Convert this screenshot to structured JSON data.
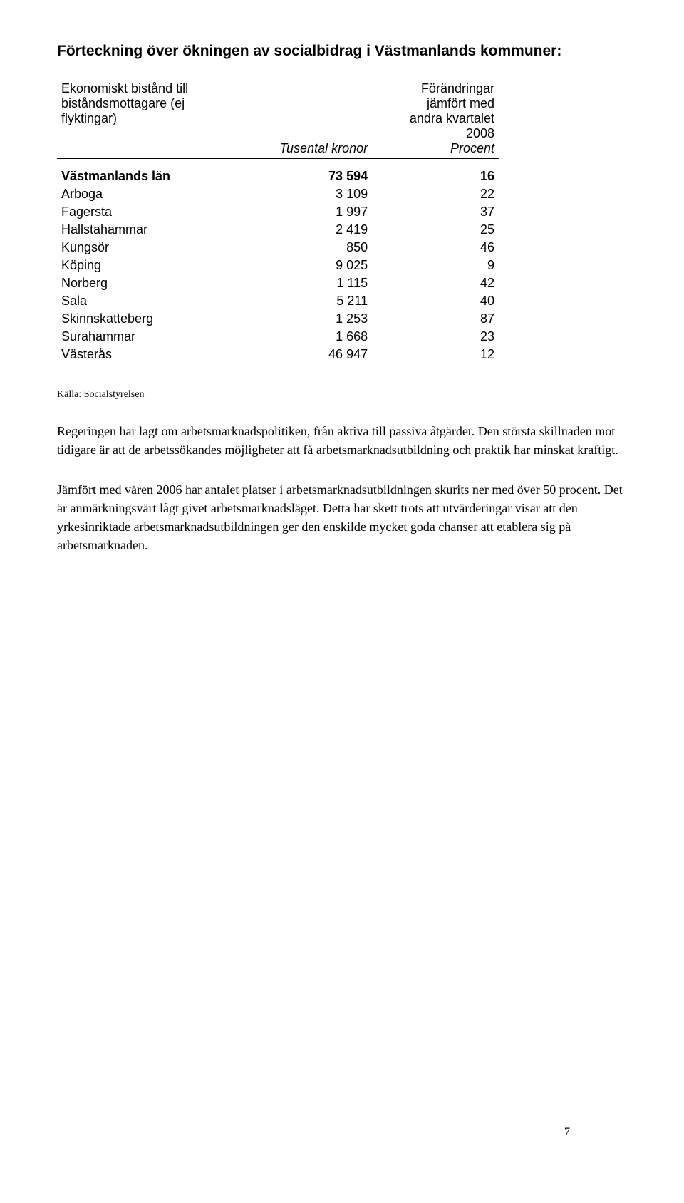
{
  "title": "Förteckning över ökningen av socialbidrag i Västmanlands kommuner:",
  "table": {
    "header_left_line1": "Ekonomiskt bistånd till",
    "header_left_line2": "biståndsmottagare (ej",
    "header_left_line3": "flyktingar)",
    "header_mid": "Tusental kronor",
    "header_right_line1": "Förändringar",
    "header_right_line2": "jämfört med",
    "header_right_line3": "andra kvartalet",
    "header_right_line4": "2008",
    "header_right_sub": "Procent",
    "rows": [
      {
        "name": "Västmanlands län",
        "v1": "73 594",
        "v2": "16",
        "bold": true
      },
      {
        "name": "Arboga",
        "v1": "3 109",
        "v2": "22",
        "bold": false
      },
      {
        "name": "Fagersta",
        "v1": "1 997",
        "v2": "37",
        "bold": false
      },
      {
        "name": "Hallstahammar",
        "v1": "2 419",
        "v2": "25",
        "bold": false
      },
      {
        "name": "Kungsör",
        "v1": "850",
        "v2": "46",
        "bold": false
      },
      {
        "name": "Köping",
        "v1": "9 025",
        "v2": "9",
        "bold": false
      },
      {
        "name": "Norberg",
        "v1": "1 115",
        "v2": "42",
        "bold": false
      },
      {
        "name": "Sala",
        "v1": "5 211",
        "v2": "40",
        "bold": false
      },
      {
        "name": "Skinnskatteberg",
        "v1": "1 253",
        "v2": "87",
        "bold": false
      },
      {
        "name": "Surahammar",
        "v1": "1 668",
        "v2": "23",
        "bold": false
      },
      {
        "name": "Västerås",
        "v1": "46 947",
        "v2": "12",
        "bold": false
      }
    ]
  },
  "source": "Källa: Socialstyrelsen",
  "para1": "Regeringen har lagt om arbetsmarknadspolitiken, från aktiva till passiva åtgärder. Den största skillnaden mot tidigare är att de arbetssökandes möjligheter att få arbetsmarknadsutbildning och praktik har minskat kraftigt.",
  "para2": "Jämfört med våren 2006 har antalet platser i arbetsmarknadsutbildningen skurits ner med över 50 procent. Det är anmärkningsvärt lågt givet arbetsmarknadsläget. Detta har skett trots att utvärderingar visar att den yrkesinriktade arbetsmarknadsutbildningen ger den enskilde mycket goda chanser att etablera sig på arbetsmarknaden.",
  "page_number": "7"
}
